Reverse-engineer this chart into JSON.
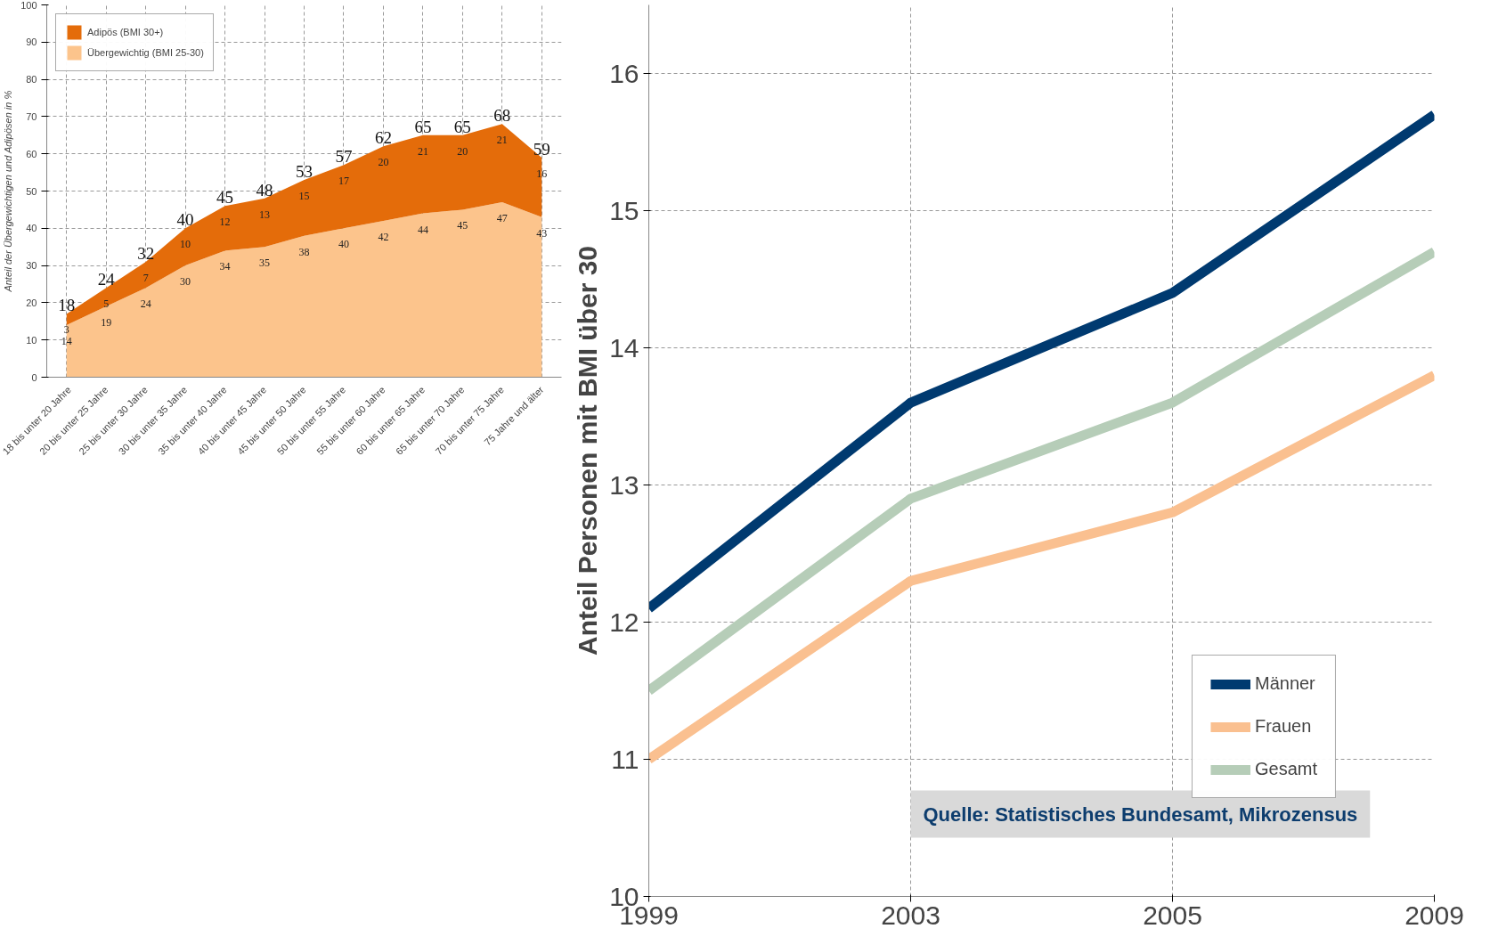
{
  "chart_data": [
    {
      "type": "area",
      "stacked": true,
      "ylabel": "Anteil der Übergewichtigen und Adipösen in %",
      "categories": [
        "18 bis unter 20 Jahre",
        "20 bis unter 25 Jahre",
        "25 bis unter 30 Jahre",
        "30 bis unter 35 Jahre",
        "35 bis unter 40 Jahre",
        "40 bis unter 45 Jahre",
        "45 bis unter 50 Jahre",
        "50 bis unter 55 Jahre",
        "55 bis unter 60 Jahre",
        "60 bis unter 65 Jahre",
        "65 bis unter 70 Jahre",
        "70 bis unter 75 Jahre",
        "75 Jahre und älter"
      ],
      "series": [
        {
          "name": "Übergewichtig (BMI 25-30)",
          "color": "#fcc48c",
          "values": [
            14,
            19,
            24,
            30,
            34,
            35,
            38,
            40,
            42,
            44,
            45,
            47,
            43
          ]
        },
        {
          "name": "Adipös (BMI 30+)",
          "color": "#e46c0a",
          "values": [
            3,
            5,
            7,
            10,
            12,
            13,
            15,
            17,
            20,
            21,
            20,
            21,
            16
          ]
        }
      ],
      "totals": [
        "18",
        "24",
        "32",
        "40",
        "45",
        "48",
        "53",
        "57",
        "62",
        "65",
        "65",
        "68",
        "59"
      ],
      "data_labels": true,
      "ylim": [
        0,
        100
      ],
      "yticks": [
        0,
        10,
        20,
        30,
        40,
        50,
        60,
        70,
        80,
        90,
        100
      ],
      "grid": true,
      "legend": "top left"
    },
    {
      "type": "line",
      "ylabel": "Anteil Personen mit BMI über 30",
      "categories": [
        "1999",
        "2003",
        "2005",
        "2009"
      ],
      "series": [
        {
          "name": "Männer",
          "color": "#003a70",
          "values": [
            12.1,
            13.6,
            14.4,
            15.7
          ]
        },
        {
          "name": "Frauen",
          "color": "#fac090",
          "values": [
            11.0,
            12.3,
            12.8,
            13.8
          ]
        },
        {
          "name": "Gesamt",
          "color": "#b6cdb8",
          "values": [
            11.5,
            12.9,
            13.6,
            14.7
          ]
        }
      ],
      "ylim": [
        10,
        16.5
      ],
      "yticks": [
        10,
        11,
        12,
        13,
        14,
        15,
        16
      ],
      "grid": true,
      "legend": "bottom right",
      "line_style": "solid",
      "annotations": [
        "Quelle: Statistisches Bundesamt, Mikrozensus"
      ]
    }
  ]
}
